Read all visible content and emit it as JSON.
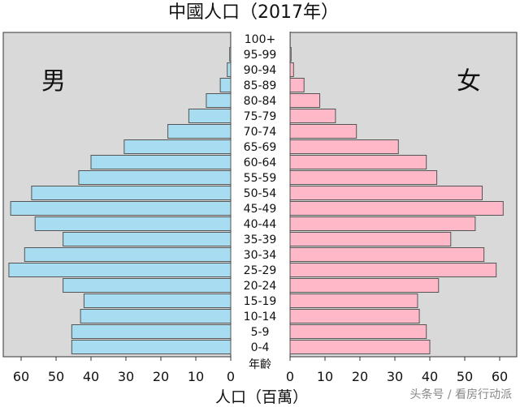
{
  "chart_data": {
    "type": "bar",
    "title": "中國人口（2017年）",
    "xlabel": "人口（百萬）",
    "age_label": "年齡",
    "categories": [
      "0-4",
      "5-9",
      "10-14",
      "15-19",
      "20-24",
      "25-29",
      "30-34",
      "35-39",
      "40-44",
      "45-49",
      "50-54",
      "55-59",
      "60-64",
      "65-69",
      "70-74",
      "75-79",
      "80-84",
      "85-89",
      "90-94",
      "95-99",
      "100+"
    ],
    "series": [
      {
        "name": "男",
        "values": [
          45.5,
          45.5,
          43,
          42,
          48,
          63.5,
          59,
          48,
          56,
          63,
          57,
          43.5,
          40,
          30.5,
          18,
          12,
          7,
          3,
          1,
          0.3,
          0.05
        ]
      },
      {
        "name": "女",
        "values": [
          40,
          39,
          37,
          36.5,
          42.5,
          59,
          55.5,
          46,
          53,
          61,
          55,
          42,
          39,
          31,
          19,
          13,
          8.5,
          4,
          1,
          0.3,
          0.05
        ]
      }
    ],
    "xlim": [
      0,
      65
    ],
    "xticks": [
      "0",
      "10",
      "20",
      "30",
      "40",
      "50",
      "60"
    ],
    "colors": {
      "male": "#a8dcf0",
      "female": "#ffb8c8",
      "edge": "#555555",
      "panel": "#d9d9d9"
    },
    "grid": false
  },
  "watermark": "头条号 / 看房行动派"
}
